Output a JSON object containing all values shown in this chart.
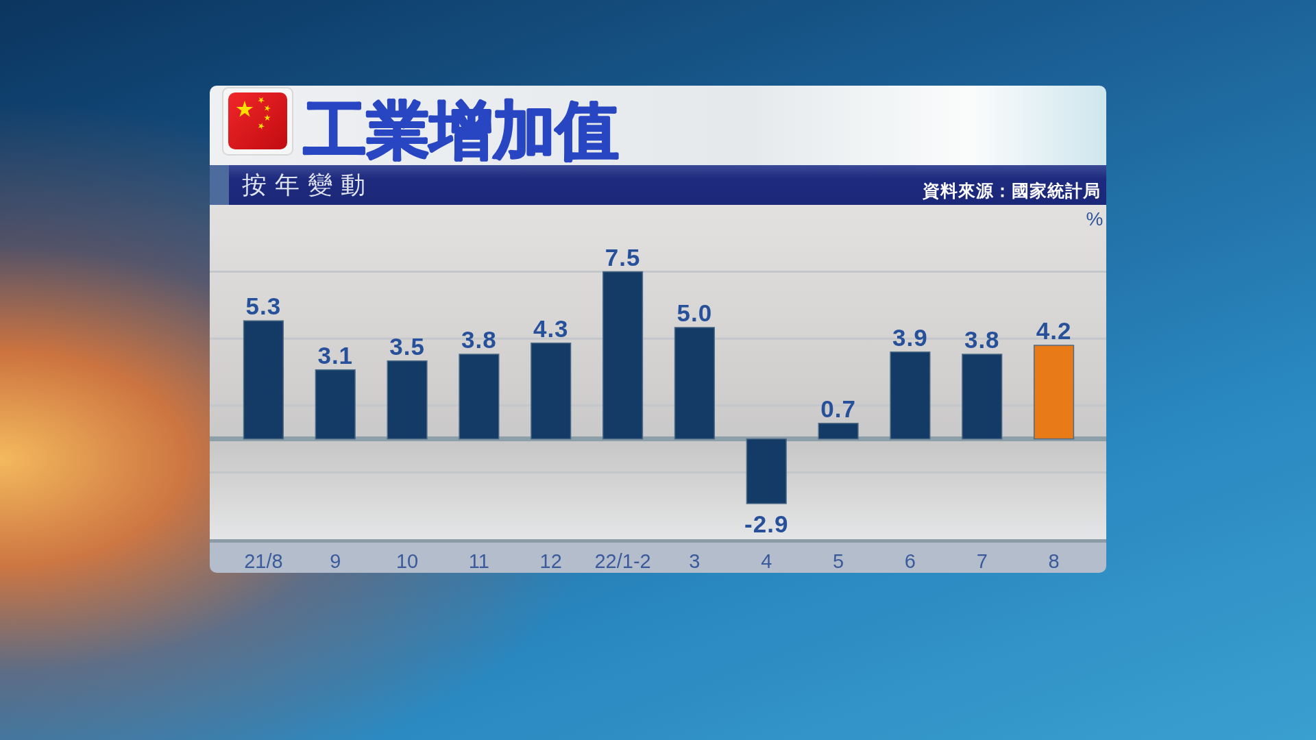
{
  "chart_data": {
    "type": "bar",
    "title": "工業增加值",
    "subtitle": "按年變動",
    "ylabel": "%",
    "annotations": [
      "資料來源：國家統計局"
    ],
    "categories": [
      "21/8",
      "9",
      "10",
      "11",
      "12",
      "22/1-2",
      "3",
      "4",
      "5",
      "6",
      "7",
      "8"
    ],
    "values": [
      5.3,
      3.1,
      3.5,
      3.8,
      4.3,
      7.5,
      5.0,
      -2.9,
      0.7,
      3.9,
      3.8,
      4.2
    ],
    "value_labels": [
      "5.3",
      "3.1",
      "3.5",
      "3.8",
      "4.3",
      "7.5",
      "5.0",
      "-2.9",
      "0.7",
      "3.9",
      "3.8",
      "4.2"
    ],
    "colors": [
      "#143a66",
      "#143a66",
      "#143a66",
      "#143a66",
      "#143a66",
      "#143a66",
      "#143a66",
      "#143a66",
      "#143a66",
      "#143a66",
      "#143a66",
      "#e97a18"
    ],
    "ylim": [
      -4.5,
      10.5
    ],
    "yticks": [
      {
        "value": -1.5,
        "label": null
      },
      {
        "value": 1.5,
        "label": null
      },
      {
        "value": 4.5,
        "label": null
      },
      {
        "value": 7.5,
        "label": null
      }
    ],
    "grid": "y"
  }
}
